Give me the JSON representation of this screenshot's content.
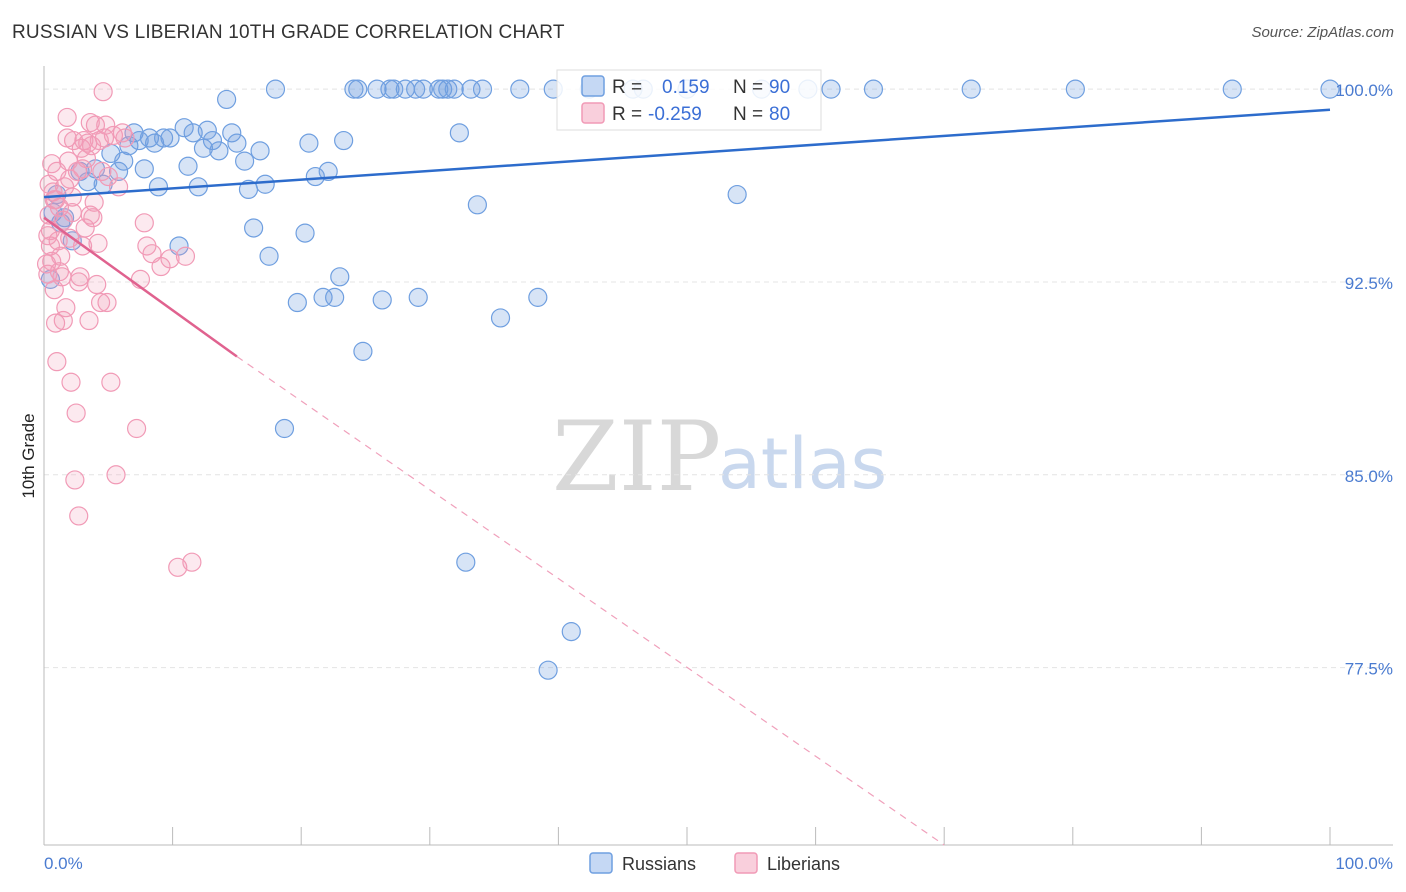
{
  "title": "RUSSIAN VS LIBERIAN 10TH GRADE CORRELATION CHART",
  "source": "Source: ZipAtlas.com",
  "watermark": {
    "zip": "ZIP",
    "atlas": "atlas"
  },
  "legend": {
    "r_label": "R =",
    "n_label": "N =",
    "rows": [
      {
        "series": "Russians",
        "r": "0.159",
        "n": "90",
        "color": "#6f9fe0"
      },
      {
        "series": "Liberians",
        "r": "-0.259",
        "n": "80",
        "color": "#f19ab6"
      }
    ]
  },
  "bottom_legend": [
    "Russians",
    "Liberians"
  ],
  "chart_data": {
    "type": "scatter",
    "title": "RUSSIAN VS LIBERIAN 10TH GRADE CORRELATION CHART",
    "xlabel": "",
    "ylabel": "10th Grade",
    "xlim": [
      0,
      100
    ],
    "ylim": [
      70.6,
      100.9
    ],
    "x_tick_labels": [
      "0.0%",
      "100.0%"
    ],
    "y_ticks": [
      100.0,
      92.5,
      85.0,
      77.5
    ],
    "y_tick_labels": [
      "100.0%",
      "92.5%",
      "85.0%",
      "77.5%"
    ],
    "series": [
      {
        "name": "Russians",
        "color": "#6f9fe0",
        "trend": {
          "x": [
            0,
            100
          ],
          "y": [
            95.8,
            99.2
          ],
          "dashed_after": null
        },
        "points": [
          [
            0.5,
            92.6
          ],
          [
            1.0,
            95.9
          ],
          [
            1.6,
            95.0
          ],
          [
            2.2,
            94.1
          ],
          [
            2.8,
            96.8
          ],
          [
            3.4,
            96.4
          ],
          [
            4.0,
            96.9
          ],
          [
            4.6,
            96.3
          ],
          [
            5.2,
            97.5
          ],
          [
            5.8,
            96.8
          ],
          [
            6.2,
            97.2
          ],
          [
            6.6,
            97.8
          ],
          [
            7.0,
            98.3
          ],
          [
            7.4,
            98.0
          ],
          [
            7.8,
            96.9
          ],
          [
            8.2,
            98.1
          ],
          [
            8.6,
            97.9
          ],
          [
            8.9,
            96.2
          ],
          [
            9.3,
            98.1
          ],
          [
            9.8,
            98.1
          ],
          [
            10.5,
            93.9
          ],
          [
            10.9,
            98.5
          ],
          [
            11.2,
            97.0
          ],
          [
            11.6,
            98.3
          ],
          [
            12.0,
            96.2
          ],
          [
            12.4,
            97.7
          ],
          [
            12.7,
            98.4
          ],
          [
            13.1,
            98.0
          ],
          [
            13.6,
            97.6
          ],
          [
            14.2,
            99.6
          ],
          [
            14.6,
            98.3
          ],
          [
            15.0,
            97.9
          ],
          [
            15.6,
            97.2
          ],
          [
            15.9,
            96.1
          ],
          [
            16.3,
            94.6
          ],
          [
            16.8,
            97.6
          ],
          [
            17.2,
            96.3
          ],
          [
            17.5,
            93.5
          ],
          [
            18.0,
            100.0
          ],
          [
            18.7,
            86.8
          ],
          [
            19.7,
            91.7
          ],
          [
            20.3,
            94.4
          ],
          [
            20.6,
            97.9
          ],
          [
            21.1,
            96.6
          ],
          [
            21.7,
            91.9
          ],
          [
            22.1,
            96.8
          ],
          [
            22.6,
            91.9
          ],
          [
            23.0,
            92.7
          ],
          [
            23.3,
            98.0
          ],
          [
            24.1,
            100.0
          ],
          [
            24.4,
            100.0
          ],
          [
            24.8,
            89.8
          ],
          [
            25.9,
            100.0
          ],
          [
            26.3,
            91.8
          ],
          [
            26.9,
            100.0
          ],
          [
            27.2,
            100.0
          ],
          [
            28.1,
            100.0
          ],
          [
            28.9,
            100.0
          ],
          [
            29.1,
            91.9
          ],
          [
            29.5,
            100.0
          ],
          [
            30.7,
            100.0
          ],
          [
            31.0,
            100.0
          ],
          [
            31.4,
            100.0
          ],
          [
            31.9,
            100.0
          ],
          [
            32.3,
            98.3
          ],
          [
            32.8,
            81.6
          ],
          [
            33.2,
            100.0
          ],
          [
            33.7,
            95.5
          ],
          [
            34.1,
            100.0
          ],
          [
            35.5,
            91.1
          ],
          [
            37.0,
            100.0
          ],
          [
            38.4,
            91.9
          ],
          [
            39.2,
            77.4
          ],
          [
            39.6,
            100.0
          ],
          [
            41.0,
            78.9
          ],
          [
            42.4,
            100.0
          ],
          [
            45.8,
            100.0
          ],
          [
            46.6,
            100.0
          ],
          [
            50.0,
            100.0
          ],
          [
            53.9,
            95.9
          ],
          [
            55.8,
            100.0
          ],
          [
            59.4,
            100.0
          ],
          [
            61.2,
            100.0
          ],
          [
            64.5,
            100.0
          ],
          [
            72.1,
            100.0
          ],
          [
            80.2,
            100.0
          ],
          [
            92.4,
            100.0
          ],
          [
            100.0,
            100.0
          ],
          [
            0.7,
            95.2
          ],
          [
            1.3,
            94.8
          ]
        ]
      },
      {
        "name": "Liberians",
        "color": "#f19ab6",
        "trend": {
          "x": [
            0,
            15
          ],
          "y": [
            95.0,
            89.6
          ],
          "dashed_to": [
            70,
            70.6
          ]
        },
        "points": [
          [
            0.2,
            93.2
          ],
          [
            0.3,
            92.8
          ],
          [
            0.4,
            95.1
          ],
          [
            0.5,
            94.5
          ],
          [
            0.6,
            93.3
          ],
          [
            0.7,
            96.0
          ],
          [
            0.8,
            92.2
          ],
          [
            0.9,
            95.7
          ],
          [
            1.0,
            89.4
          ],
          [
            1.0,
            96.8
          ],
          [
            1.1,
            94.1
          ],
          [
            1.2,
            95.4
          ],
          [
            1.3,
            93.5
          ],
          [
            1.4,
            92.7
          ],
          [
            1.5,
            94.9
          ],
          [
            1.6,
            96.2
          ],
          [
            1.7,
            91.5
          ],
          [
            1.8,
            98.1
          ],
          [
            1.9,
            97.2
          ],
          [
            2.0,
            96.5
          ],
          [
            2.1,
            88.6
          ],
          [
            2.2,
            95.8
          ],
          [
            2.3,
            98.0
          ],
          [
            2.4,
            84.8
          ],
          [
            2.5,
            87.4
          ],
          [
            2.6,
            96.8
          ],
          [
            2.7,
            83.4
          ],
          [
            2.8,
            92.7
          ],
          [
            2.9,
            97.7
          ],
          [
            3.0,
            96.9
          ],
          [
            3.1,
            98.0
          ],
          [
            3.2,
            94.6
          ],
          [
            3.3,
            97.3
          ],
          [
            3.4,
            97.9
          ],
          [
            3.5,
            91.0
          ],
          [
            3.6,
            98.7
          ],
          [
            3.7,
            97.8
          ],
          [
            3.8,
            95.0
          ],
          [
            3.9,
            95.6
          ],
          [
            4.0,
            98.6
          ],
          [
            4.1,
            92.4
          ],
          [
            4.2,
            94.0
          ],
          [
            4.3,
            98.0
          ],
          [
            4.4,
            91.7
          ],
          [
            4.5,
            96.8
          ],
          [
            4.6,
            99.9
          ],
          [
            4.7,
            98.1
          ],
          [
            4.8,
            98.6
          ],
          [
            4.9,
            91.7
          ],
          [
            5.0,
            96.6
          ],
          [
            5.2,
            88.6
          ],
          [
            5.4,
            98.2
          ],
          [
            5.6,
            85.0
          ],
          [
            5.8,
            96.2
          ],
          [
            6.1,
            98.3
          ],
          [
            6.3,
            98.1
          ],
          [
            7.2,
            86.8
          ],
          [
            7.5,
            92.6
          ],
          [
            7.8,
            94.8
          ],
          [
            8.0,
            93.9
          ],
          [
            8.4,
            93.6
          ],
          [
            9.1,
            93.1
          ],
          [
            9.8,
            93.4
          ],
          [
            10.4,
            81.4
          ],
          [
            11.0,
            93.5
          ],
          [
            11.5,
            81.6
          ],
          [
            0.9,
            90.9
          ],
          [
            1.5,
            91.0
          ],
          [
            2.2,
            95.2
          ],
          [
            3.0,
            93.9
          ],
          [
            0.3,
            94.3
          ],
          [
            0.6,
            97.1
          ],
          [
            1.8,
            98.9
          ],
          [
            2.7,
            92.5
          ],
          [
            3.6,
            95.1
          ],
          [
            0.4,
            96.3
          ],
          [
            0.5,
            93.9
          ],
          [
            1.2,
            92.9
          ],
          [
            2.0,
            94.2
          ],
          [
            0.8,
            95.7
          ]
        ]
      }
    ]
  }
}
